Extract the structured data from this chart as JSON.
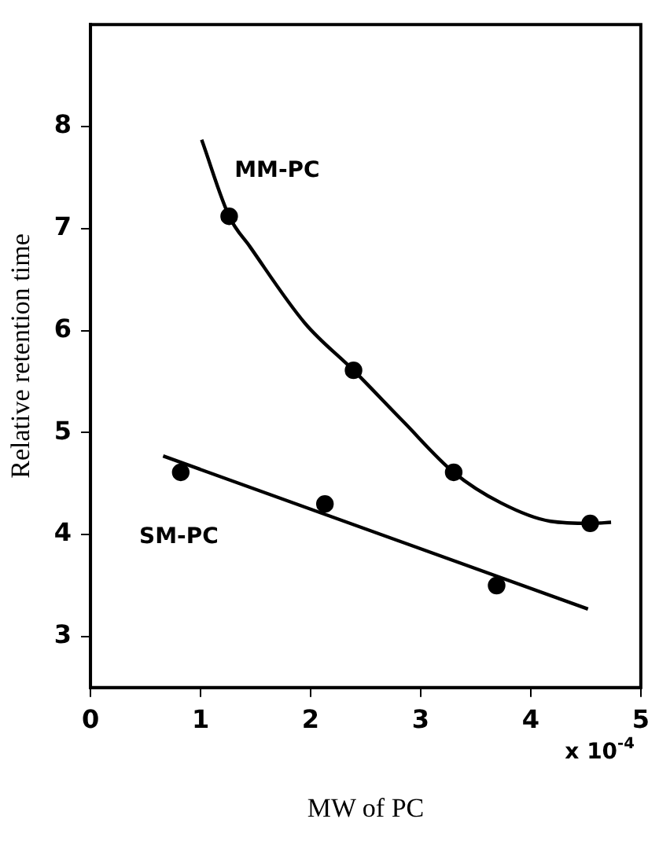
{
  "chart_data": {
    "type": "scatter",
    "xlabel": "MW of PC",
    "ylabel": "Relative retention time",
    "annotations": [
      "x 10$^{-4}$"
    ],
    "xlim": [
      0,
      5
    ],
    "xticks": [
      0,
      1,
      2,
      3,
      4,
      5
    ],
    "ylim": [
      2.5,
      9
    ],
    "yticks": [
      3,
      4,
      5,
      6,
      7,
      8
    ],
    "grid": false,
    "legend": false,
    "marker": "circle",
    "series": [
      {
        "name": "MM-PC",
        "type": "line",
        "color": "#000000",
        "marker": "none",
        "x": [
          1.01,
          1.26,
          1.45,
          1.95,
          2.39,
          2.84,
          3.3,
          3.73,
          4.18,
          4.54,
          4.73
        ],
        "values": [
          7.87,
          7.12,
          6.82,
          6.07,
          5.61,
          5.11,
          4.61,
          4.31,
          4.13,
          4.11,
          4.12
        ]
      },
      {
        "color": "#000000",
        "x": [
          1.26,
          2.39,
          3.3,
          4.54
        ],
        "values": [
          7.12,
          5.61,
          4.61,
          4.11
        ]
      },
      {
        "name": "SM-PC",
        "type": "line",
        "color": "#000000",
        "marker": "none",
        "x": [
          0.66,
          4.52
        ],
        "values": [
          4.77,
          3.27
        ]
      },
      {
        "color": "#000000",
        "x": [
          0.82,
          2.13,
          3.69
        ],
        "values": [
          4.61,
          4.3,
          3.5
        ]
      }
    ]
  }
}
